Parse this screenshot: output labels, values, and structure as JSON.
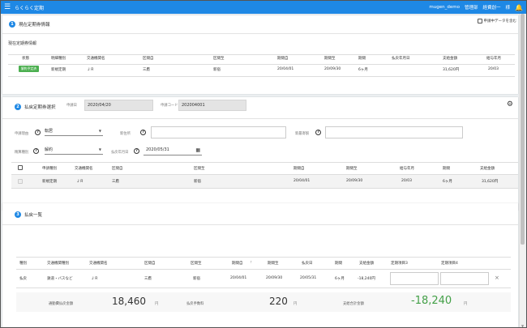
{
  "app": {
    "title": "らくらく定期",
    "user_id": "mugen_demo",
    "dept": "管理部",
    "name": "経費創一",
    "honorific": "様"
  },
  "section1": {
    "number": "1",
    "title": "現在定期券情報",
    "sub_title": "現在定期券情報",
    "include_pending_label": "申請中データを含む",
    "headers": [
      "状態",
      "明細種別",
      "交通機関名",
      "区間自",
      "区間至",
      "期間自",
      "期間至",
      "期間",
      "払戻年月日",
      "支給金額",
      "給与年月"
    ],
    "row": {
      "status": "解約予定済",
      "type": "新規定期",
      "transport": "ＪＲ",
      "from": "三鷹",
      "to": "新宿",
      "start": "20/04/01",
      "end": "20/09/30",
      "period": "6ヶ月",
      "refund_date": "",
      "amount": "31,620円",
      "salary": "20/03"
    }
  },
  "section2": {
    "number": "2",
    "title": "払戻定期券選択",
    "app_date_label": "申請日",
    "app_date": "2020/04/20",
    "app_code_label": "申請コード",
    "app_code": "202004001",
    "reason_label": "申請理由",
    "reason_value": "転居",
    "new_address_label": "新住所",
    "new_nearest_label": "新最寄駅",
    "request_type_label": "精算種別",
    "request_type_value": "解約",
    "refund_date_label": "払戻年月日",
    "refund_date_value": "2020/05/31",
    "headers": [
      "申請種別",
      "交通機関名",
      "区間自",
      "区間至",
      "期間自",
      "期間至",
      "給与年月",
      "期間",
      "支給金額"
    ],
    "row": {
      "type": "新規定期",
      "transport": "ＪＲ",
      "from": "三鷹",
      "to": "新宿",
      "start": "20/04/01",
      "end": "20/09/30",
      "salary": "20/03",
      "period": "6ヶ月",
      "amount": "31,620円"
    }
  },
  "section3": {
    "number": "3",
    "title": "払戻一覧",
    "headers": [
      "種別",
      "交通機関種別",
      "交通機関名",
      "区間自",
      "区間至",
      "期間自",
      "期間至",
      "払戻日",
      "期間",
      "支給金額",
      "定期項目3",
      "定期項目4"
    ],
    "sort_mark": "↑",
    "row": {
      "kind": "払戻",
      "transport_type": "鉄道・バスなど",
      "transport": "ＪＲ",
      "from": "三鷹",
      "to": "新宿",
      "start": "20/04/01",
      "end": "20/09/30",
      "refund": "20/05/31",
      "period": "6ヶ月",
      "amount": "-18,240円",
      "close": "×"
    },
    "totals": {
      "refund_label": "通勤費払戻金額",
      "refund_value": "18,460",
      "fee_label": "払戻手数料",
      "fee_value": "220",
      "total_label": "支給合計金額",
      "total_value": "-18,240",
      "unit": "円"
    }
  },
  "colors": {
    "header_blue": "#1e88e5",
    "status_green": "#4caf50",
    "total_green": "#43a047"
  }
}
